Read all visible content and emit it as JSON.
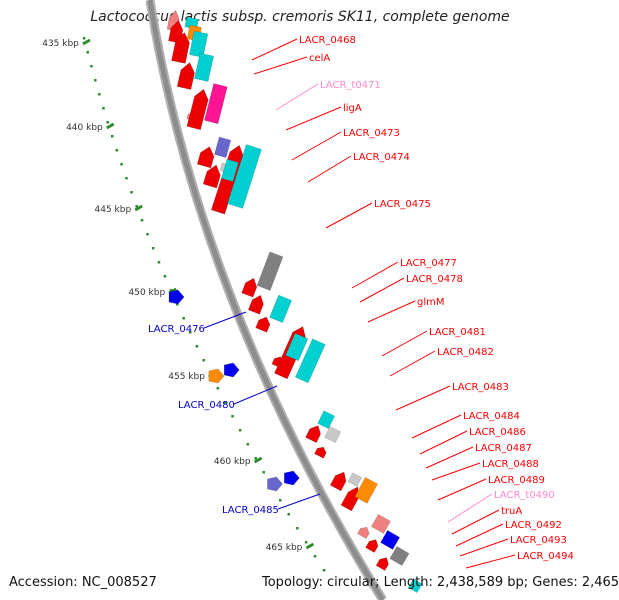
{
  "title": "Lactococcus lactis subsp. cremoris SK11, complete genome",
  "footer": {
    "accession": "Accession: NC_008527",
    "topology": "Topology: circular; Length: 2,438,589 bp; Genes: 2,465"
  },
  "colors": {
    "backbone": "#8c8c8c",
    "ruler_dots": "#2d8c2d",
    "ruler_text": "#333333",
    "label_red": "#ff0000",
    "label_blue": "#0000cc",
    "label_pink": "#ff88cc",
    "gene_red": "#ee0000",
    "gene_cyan": "#00d0d0",
    "gene_orange": "#ff8c00",
    "gene_magenta": "#ff1493",
    "gene_gray": "#808080",
    "gene_lightgray": "#c8c8c8",
    "gene_purple": "#6666cc",
    "gene_blue": "#0000ee",
    "gene_pink": "#f08080"
  },
  "ruler_ticks": [
    "435 kbp",
    "440 kbp",
    "445 kbp",
    "450 kbp",
    "455 kbp",
    "460 kbp",
    "465 kbp"
  ],
  "labels_right": [
    {
      "text": "LACR_0468",
      "color": "red"
    },
    {
      "text": "celA",
      "color": "red"
    },
    {
      "text": "LACR_t0471",
      "color": "pink"
    },
    {
      "text": "ligA",
      "color": "red"
    },
    {
      "text": "LACR_0473",
      "color": "red"
    },
    {
      "text": "LACR_0474",
      "color": "red"
    },
    {
      "text": "LACR_0475",
      "color": "red"
    },
    {
      "text": "LACR_0477",
      "color": "red"
    },
    {
      "text": "LACR_0478",
      "color": "red"
    },
    {
      "text": "glmM",
      "color": "red"
    },
    {
      "text": "LACR_0481",
      "color": "red"
    },
    {
      "text": "LACR_0482",
      "color": "red"
    },
    {
      "text": "LACR_0483",
      "color": "red"
    },
    {
      "text": "LACR_0484",
      "color": "red"
    },
    {
      "text": "LACR_0486",
      "color": "red"
    },
    {
      "text": "LACR_0487",
      "color": "red"
    },
    {
      "text": "LACR_0488",
      "color": "red"
    },
    {
      "text": "LACR_0489",
      "color": "red"
    },
    {
      "text": "LACR_t0490",
      "color": "pink"
    },
    {
      "text": "truA",
      "color": "red"
    },
    {
      "text": "LACR_0492",
      "color": "red"
    },
    {
      "text": "LACR_0493",
      "color": "red"
    },
    {
      "text": "LACR_0494",
      "color": "red"
    }
  ],
  "labels_left": [
    {
      "text": "LACR_0476",
      "color": "blue"
    },
    {
      "text": "LACR_0480",
      "color": "blue"
    },
    {
      "text": "LACR_0485",
      "color": "blue"
    }
  ]
}
